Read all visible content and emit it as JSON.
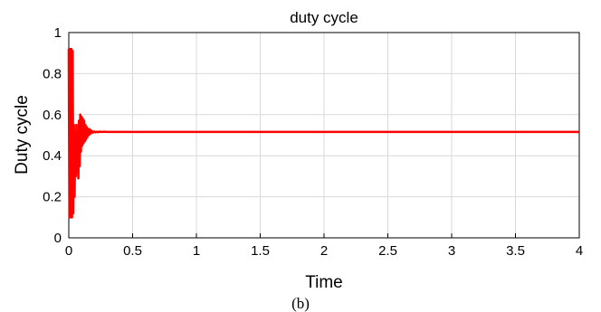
{
  "chart_data": {
    "type": "line",
    "title": "duty cycle",
    "xlabel": "Time",
    "ylabel": "Duty cycle",
    "caption": "(b)",
    "xlim": [
      0,
      4
    ],
    "ylim": [
      0,
      1
    ],
    "xticks": [
      "0",
      "0.5",
      "1",
      "1.5",
      "2",
      "2.5",
      "3",
      "3.5",
      "4"
    ],
    "yticks": [
      "0",
      "0.2",
      "0.4",
      "0.6",
      "0.8",
      "1"
    ],
    "grid": true,
    "series": [
      {
        "color": "#ff0000",
        "x": [
          0,
          0.005,
          0.01,
          0.015,
          0.02,
          0.025,
          0.03,
          0.035,
          0.04,
          0.045,
          0.05,
          0.055,
          0.06,
          0.065,
          0.07,
          0.075,
          0.08,
          0.085,
          0.09,
          0.095,
          0.1,
          0.105,
          0.11,
          0.115,
          0.12,
          0.125,
          0.13,
          0.135,
          0.14,
          0.145,
          0.15,
          0.155,
          0.16,
          0.165,
          0.17,
          0.175,
          0.18,
          0.19,
          0.2,
          0.21,
          0.22,
          0.23,
          0.24,
          0.26,
          0.28,
          0.3,
          0.35,
          0.4,
          4.0
        ],
        "y": [
          0.92,
          0.1,
          0.92,
          0.1,
          0.92,
          0.1,
          0.91,
          0.12,
          0.55,
          0.2,
          0.45,
          0.3,
          0.55,
          0.32,
          0.5,
          0.29,
          0.57,
          0.35,
          0.6,
          0.42,
          0.59,
          0.45,
          0.58,
          0.46,
          0.57,
          0.47,
          0.55,
          0.48,
          0.54,
          0.49,
          0.53,
          0.5,
          0.53,
          0.505,
          0.525,
          0.51,
          0.52,
          0.513,
          0.518,
          0.514,
          0.517,
          0.515,
          0.517,
          0.516,
          0.517,
          0.516,
          0.516,
          0.516,
          0.516
        ]
      }
    ]
  }
}
